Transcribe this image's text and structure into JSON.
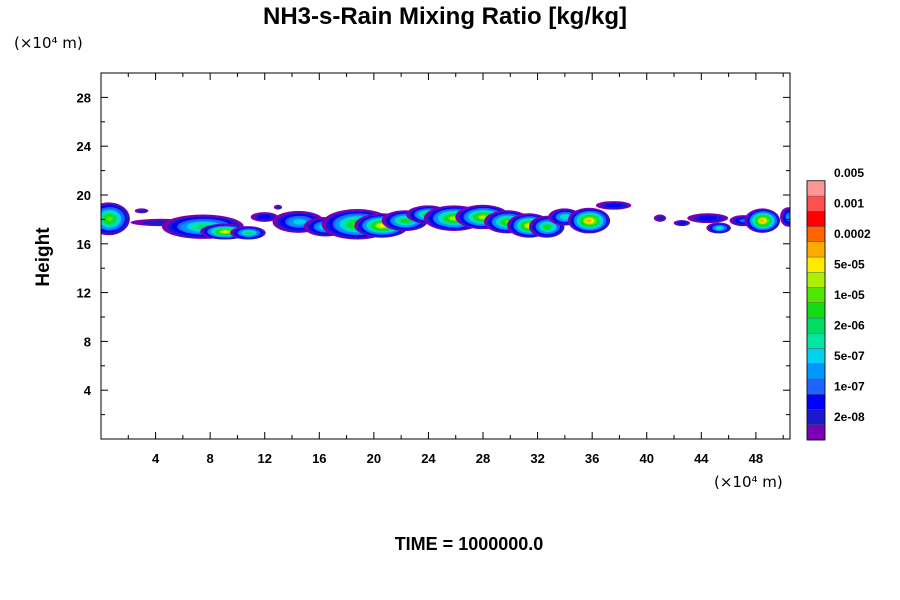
{
  "chart_data": {
    "type": "heatmap",
    "title": "NH3-s-Rain Mixing Ratio [kg/kg]",
    "ylabel": "Height",
    "xlabel": "",
    "x_unit": "(×10⁴ m)",
    "y_unit": "(×10⁴ m)",
    "xlim": [
      0,
      50.5
    ],
    "ylim": [
      0,
      30
    ],
    "x_ticks": [
      "4",
      "8",
      "12",
      "16",
      "20",
      "24",
      "28",
      "32",
      "36",
      "40",
      "44",
      "48"
    ],
    "y_ticks": [
      "4",
      "8",
      "12",
      "16",
      "20",
      "24",
      "28"
    ],
    "colorbar": {
      "labels": [
        "0.005",
        "0.001",
        "0.0002",
        "5e-05",
        "1e-05",
        "2e-06",
        "5e-07",
        "1e-07",
        "2e-08"
      ],
      "colors": [
        "#7a00b4",
        "#1a1acc",
        "#0000ff",
        "#1e64ff",
        "#0096ff",
        "#00d2f0",
        "#00e6a0",
        "#00dc64",
        "#14dc14",
        "#50e600",
        "#aaf000",
        "#ffeb00",
        "#ffaa00",
        "#ff6400",
        "#ff0000",
        "#ff5050",
        "#ff9696"
      ]
    },
    "annotation": "TIME = 1000000.0",
    "blobs": [
      {
        "x": 0.6,
        "y": 18.05,
        "rx": 1.55,
        "ry": 1.35,
        "peak": 9
      },
      {
        "x": 4.4,
        "y": 17.75,
        "rx": 2.2,
        "ry": 0.3,
        "peak": 1
      },
      {
        "x": 7.5,
        "y": 17.4,
        "rx": 3.0,
        "ry": 1.0,
        "peak": 7
      },
      {
        "x": 9.1,
        "y": 17.0,
        "rx": 1.8,
        "ry": 0.65,
        "peak": 11
      },
      {
        "x": 10.8,
        "y": 16.9,
        "rx": 1.3,
        "ry": 0.55,
        "peak": 7
      },
      {
        "x": 12.0,
        "y": 18.2,
        "rx": 1.0,
        "ry": 0.4,
        "peak": 2
      },
      {
        "x": 14.5,
        "y": 17.8,
        "rx": 1.9,
        "ry": 0.9,
        "peak": 5
      },
      {
        "x": 16.5,
        "y": 17.4,
        "rx": 1.6,
        "ry": 0.8,
        "peak": 6
      },
      {
        "x": 18.8,
        "y": 17.6,
        "rx": 2.6,
        "ry": 1.25,
        "peak": 9
      },
      {
        "x": 20.6,
        "y": 17.5,
        "rx": 2.0,
        "ry": 1.0,
        "peak": 11
      },
      {
        "x": 22.3,
        "y": 17.9,
        "rx": 1.7,
        "ry": 0.85,
        "peak": 8
      },
      {
        "x": 24.0,
        "y": 18.4,
        "rx": 1.6,
        "ry": 0.75,
        "peak": 8
      },
      {
        "x": 25.9,
        "y": 18.1,
        "rx": 2.2,
        "ry": 1.05,
        "peak": 10
      },
      {
        "x": 28.0,
        "y": 18.2,
        "rx": 2.0,
        "ry": 1.0,
        "peak": 10
      },
      {
        "x": 29.8,
        "y": 17.8,
        "rx": 1.7,
        "ry": 0.95,
        "peak": 9
      },
      {
        "x": 31.4,
        "y": 17.5,
        "rx": 1.6,
        "ry": 1.0,
        "peak": 11
      },
      {
        "x": 32.7,
        "y": 17.4,
        "rx": 1.3,
        "ry": 0.9,
        "peak": 8
      },
      {
        "x": 34.0,
        "y": 18.2,
        "rx": 1.2,
        "ry": 0.7,
        "peak": 6
      },
      {
        "x": 35.8,
        "y": 17.9,
        "rx": 1.55,
        "ry": 1.05,
        "peak": 12
      },
      {
        "x": 37.6,
        "y": 19.15,
        "rx": 1.3,
        "ry": 0.35,
        "peak": 2
      },
      {
        "x": 44.5,
        "y": 18.1,
        "rx": 1.5,
        "ry": 0.4,
        "peak": 2
      },
      {
        "x": 45.3,
        "y": 17.3,
        "rx": 0.9,
        "ry": 0.45,
        "peak": 6
      },
      {
        "x": 47.1,
        "y": 17.9,
        "rx": 1.0,
        "ry": 0.45,
        "peak": 3
      },
      {
        "x": 48.5,
        "y": 17.9,
        "rx": 1.3,
        "ry": 1.0,
        "peak": 12
      },
      {
        "x": 50.4,
        "y": 18.2,
        "rx": 0.6,
        "ry": 0.8,
        "peak": 4
      }
    ],
    "fragments": [
      {
        "x": 41.0,
        "y": 18.1,
        "rx": 0.45,
        "ry": 0.3,
        "peak": 1
      },
      {
        "x": 42.6,
        "y": 17.7,
        "rx": 0.6,
        "ry": 0.25,
        "peak": 2
      },
      {
        "x": 3.0,
        "y": 18.7,
        "rx": 0.5,
        "ry": 0.2,
        "peak": 1
      },
      {
        "x": 13.0,
        "y": 19.0,
        "rx": 0.3,
        "ry": 0.2,
        "peak": 1
      }
    ]
  }
}
